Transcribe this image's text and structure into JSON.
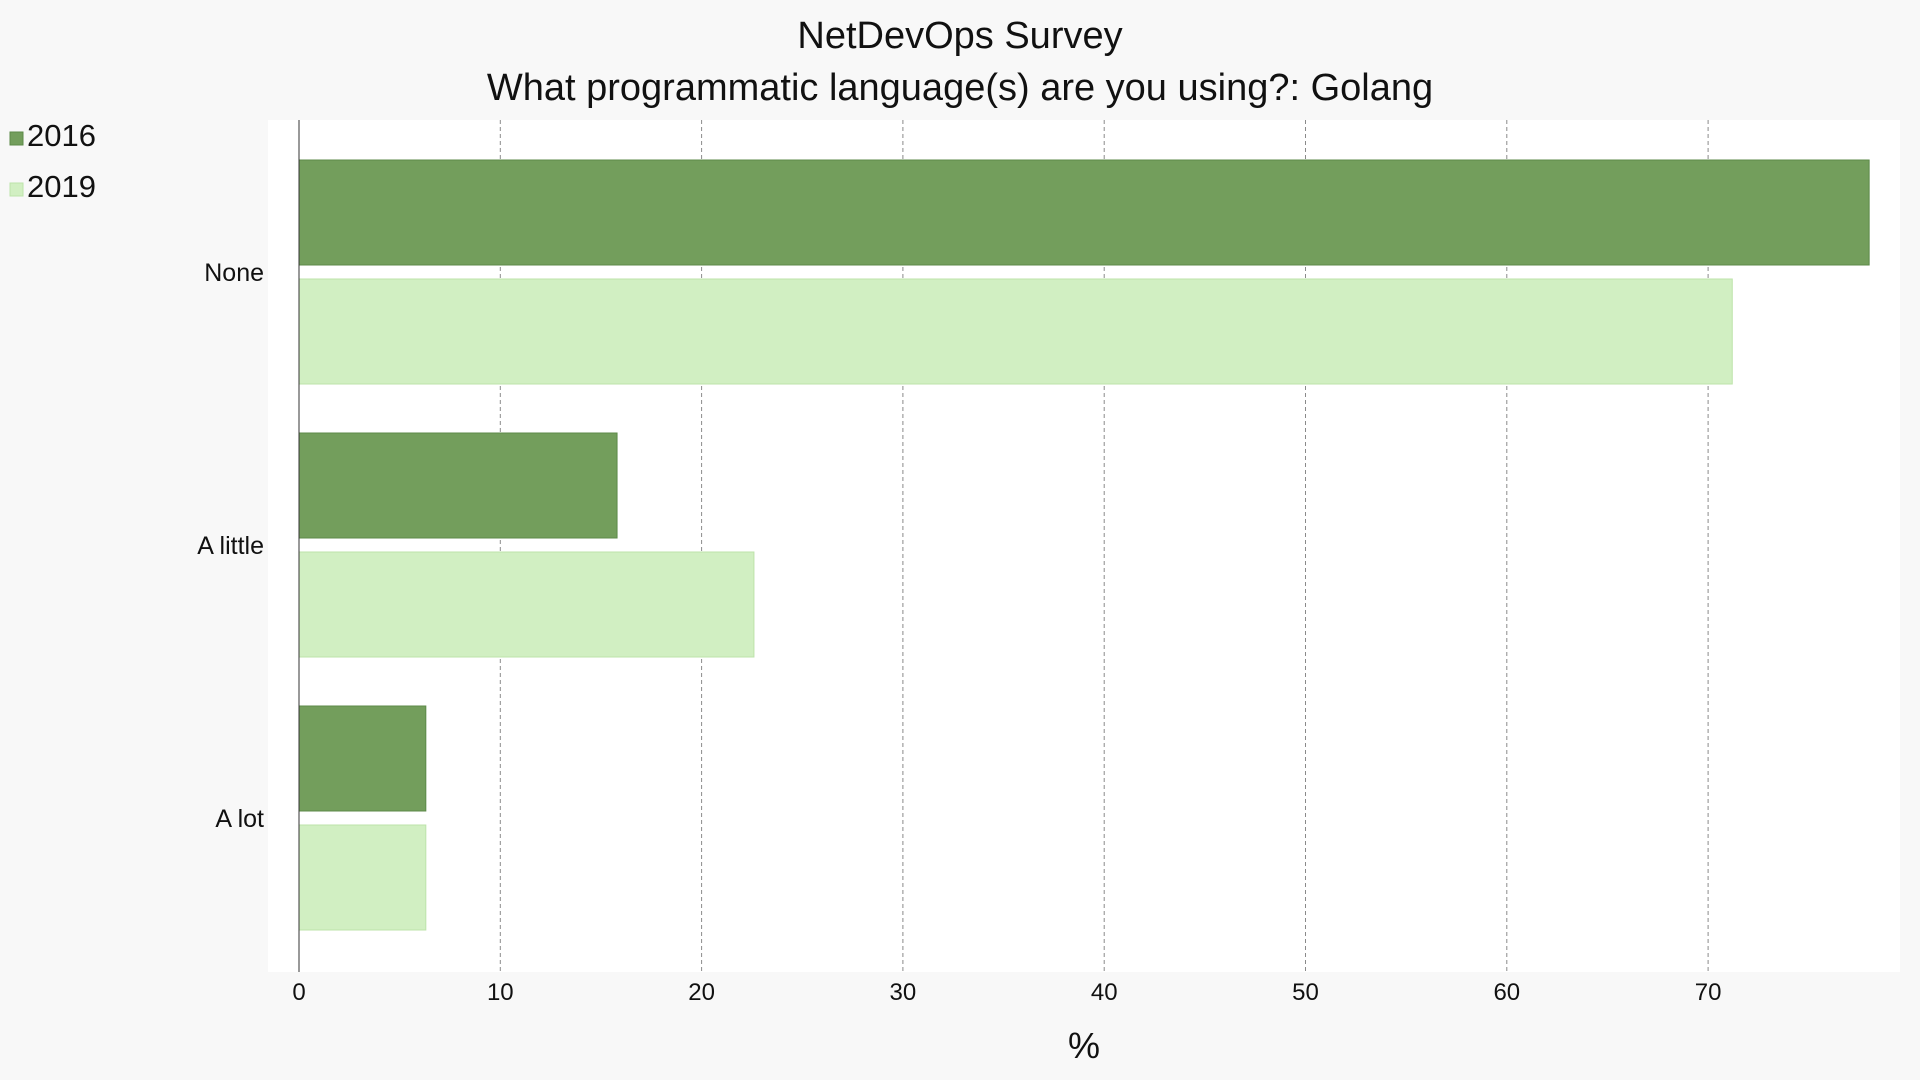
{
  "chart_data": {
    "type": "bar",
    "orientation": "horizontal",
    "title": "NetDevOps Survey",
    "subtitle": "What programmatic language(s) are you using?: Golang",
    "xlabel": "%",
    "ylabel": "",
    "categories": [
      "None",
      "A little",
      "A lot"
    ],
    "series": [
      {
        "name": "2016",
        "color": "#739e5c",
        "values": [
          78.0,
          15.8,
          6.3
        ]
      },
      {
        "name": "2019",
        "color": "#d1efc2",
        "values": [
          71.2,
          22.6,
          6.3
        ]
      }
    ],
    "xlim": [
      0,
      79.5
    ],
    "xticks": [
      0,
      10,
      20,
      30,
      40,
      50,
      60,
      70
    ],
    "grid": true,
    "legend_position": "top-left"
  },
  "colors": {
    "page_background": "#f8f8f8",
    "plot_background": "#ffffff",
    "grid": "#8a8a8a",
    "bar_2016": "#739e5c",
    "bar_2019": "#d1efc2"
  }
}
